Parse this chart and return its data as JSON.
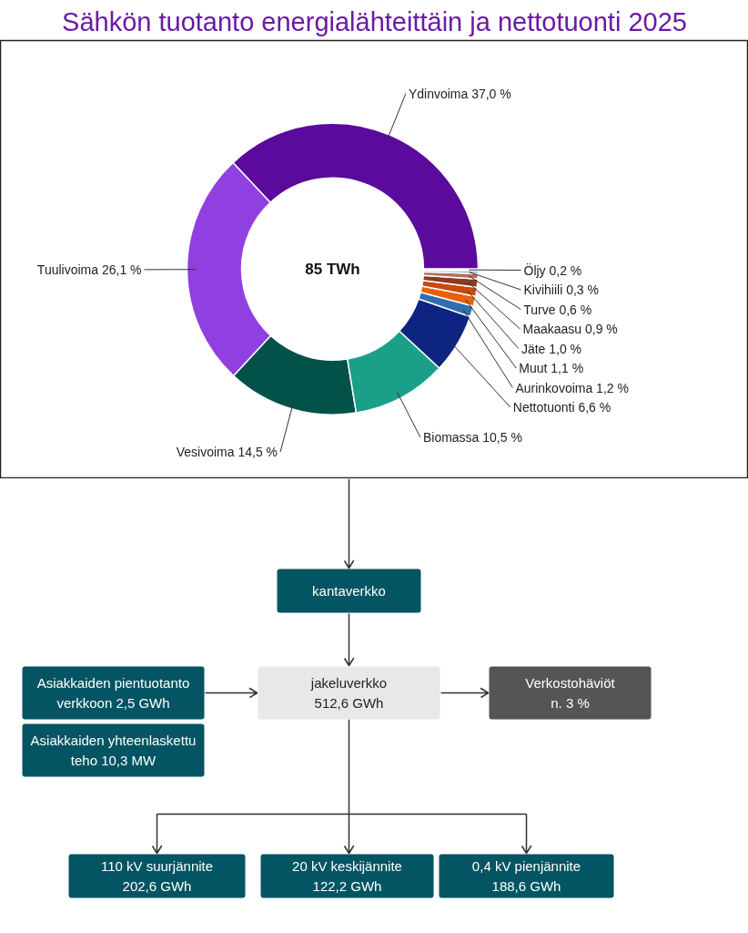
{
  "chart_data": [
    {
      "type": "donut",
      "title": "Sähkön tuotanto energialähteittäin ja nettotuonti 2025",
      "categories": [
        "Ydinvoima",
        "Tuulivoima",
        "Vesivoima",
        "Biomassa",
        "Nettotuonti",
        "Aurinkovoima",
        "Muut",
        "Jäte",
        "Maakaasu",
        "Turve",
        "Kivihiili",
        "Öljy"
      ],
      "values": [
        37.0,
        26.1,
        14.5,
        10.5,
        6.6,
        1.2,
        1.1,
        1.0,
        0.9,
        0.6,
        0.3,
        0.2
      ],
      "value_labels": [
        "37,0 %",
        "26,1 %",
        "14,5 %",
        "10,5 %",
        "6,6 %",
        "1,2 %",
        "1,1 %",
        "1,0 %",
        "0,9 %",
        "0,6 %",
        "0,3 %",
        "0,2 %"
      ],
      "colors": [
        "#5a0a9c",
        "#9040e0",
        "#03524a",
        "#1aa088",
        "#0d2580",
        "#2f6fb0",
        "#e8600a",
        "#c84a10",
        "#8c3a20",
        "#b07060",
        "#a0a0a0",
        "#d8d8d8"
      ],
      "annotations": [
        "85 TWh"
      ]
    },
    {
      "type": "other",
      "annotations": [
        "kantaverkko",
        "Asiakkaiden pientuotanto\nverkkoon 2,5 GWh",
        "jakeluverkko\n512,6 GWh",
        "Verkostohäviöt\nn. 3 %",
        "Asiakkaiden yhteenlaskettu\nteho 10,3 MW",
        "110 kV suurjännite\n202,6 GWh",
        "20 kV keskijännite\n122,2 GWh",
        "0,4 kV pienjännite\n188,6 GWh"
      ],
      "colors": [
        "#035563",
        "#035563",
        "#e8e8e8",
        "#555555",
        "#035563",
        "#035563",
        "#035563",
        "#035563"
      ]
    }
  ]
}
